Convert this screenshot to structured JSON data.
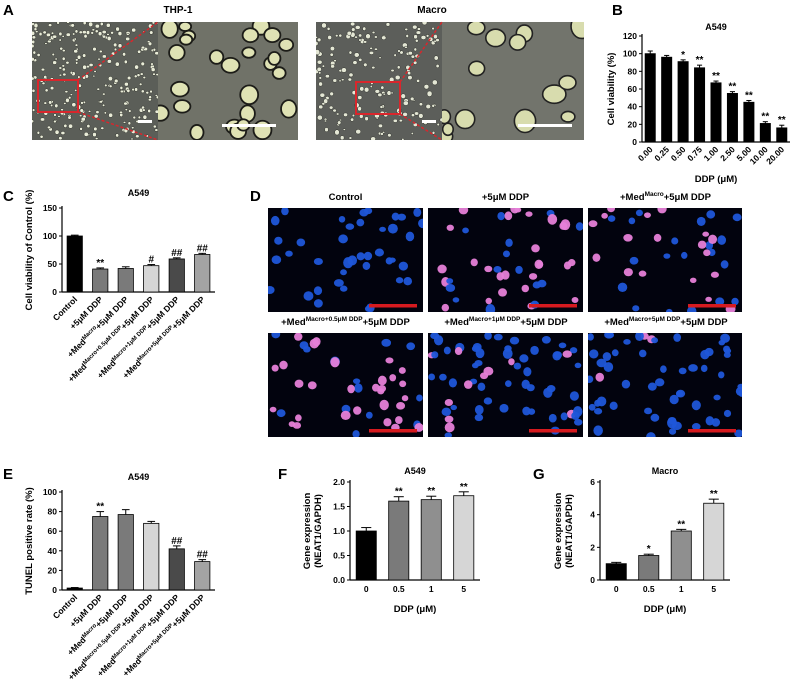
{
  "panels": {
    "A": {
      "letter": "A",
      "titles": [
        "THP-1",
        "Macro"
      ]
    },
    "B": {
      "letter": "B"
    },
    "C": {
      "letter": "C"
    },
    "D": {
      "letter": "D",
      "titles": [
        {
          "main": "Control",
          "sup": "",
          "tail": ""
        },
        {
          "main": "+5μM DDP",
          "sup": "",
          "tail": ""
        },
        {
          "main": "+Med",
          "sup": "Macro",
          "tail": "+5μM DDP"
        },
        {
          "main": "+Med",
          "sup": "Macro+0.5μM DDP",
          "tail": "+5μM DDP"
        },
        {
          "main": "+Med",
          "sup": "Macro+1μM DDP",
          "tail": "+5μM DDP"
        },
        {
          "main": "+Med",
          "sup": "Macro+5μM DDP",
          "tail": "+5μM DDP"
        }
      ]
    },
    "E": {
      "letter": "E"
    },
    "F": {
      "letter": "F"
    },
    "G": {
      "letter": "G"
    }
  },
  "chart_data": [
    {
      "id": "B",
      "type": "bar",
      "title": "A549",
      "ylabel": "Cell viability (%)",
      "xlabel": "DDP (μM)",
      "ylim": [
        0,
        120
      ],
      "yticks": [
        0,
        20,
        40,
        60,
        80,
        100,
        120
      ],
      "categories": [
        "0.00",
        "0.25",
        "0.50",
        "0.75",
        "1.00",
        "2.50",
        "5.00",
        "10.00",
        "20.00"
      ],
      "values": [
        100,
        96,
        91,
        84,
        67,
        55,
        45,
        21,
        16
      ],
      "errors": [
        3,
        2,
        2,
        3,
        2,
        2,
        2,
        2,
        3
      ],
      "annotations": [
        "",
        "",
        "*",
        "**",
        "**",
        "**",
        "**",
        "**",
        "**"
      ],
      "colors": [
        "#000000",
        "#000000",
        "#000000",
        "#000000",
        "#000000",
        "#000000",
        "#000000",
        "#000000",
        "#000000"
      ]
    },
    {
      "id": "C",
      "type": "bar",
      "title": "A549",
      "ylabel": "Cell viability of Control (%)",
      "xlabel": "",
      "ylim": [
        0,
        150
      ],
      "yticks": [
        0,
        50,
        100,
        150
      ],
      "categories": [
        {
          "main": "Control",
          "sup": "",
          "tail": ""
        },
        {
          "main": "+5μM DDP",
          "sup": "",
          "tail": ""
        },
        {
          "main": "+Med",
          "sup": "Macro",
          "tail": "+5μM DDP"
        },
        {
          "main": "+Med",
          "sup": "Macro+0.5μM DDP",
          "tail": "+5μM DDP"
        },
        {
          "main": "+Med",
          "sup": "Macro+1μM DDP",
          "tail": "+5μM DDP"
        },
        {
          "main": "+Med",
          "sup": "Macro+5μM DDP",
          "tail": "+5μM DDP"
        }
      ],
      "values": [
        100,
        41,
        42,
        47,
        59,
        67
      ],
      "errors": [
        1.5,
        2,
        3,
        2,
        2,
        2
      ],
      "annotations": [
        "",
        "**",
        "",
        "#",
        "##",
        "##"
      ],
      "colors": [
        "#000000",
        "#7a7a7a",
        "#7a7a7a",
        "#d6d6d6",
        "#4a4a4a",
        "#a3a3a3"
      ]
    },
    {
      "id": "E",
      "type": "bar",
      "title": "A549",
      "ylabel": "TUNEL positive rate  (%)",
      "xlabel": "",
      "ylim": [
        0,
        100
      ],
      "yticks": [
        0,
        20,
        40,
        60,
        80,
        100
      ],
      "categories": [
        {
          "main": "Control",
          "sup": "",
          "tail": ""
        },
        {
          "main": "+5μM DDP",
          "sup": "",
          "tail": ""
        },
        {
          "main": "+Med",
          "sup": "Macro",
          "tail": "+5μM DDP"
        },
        {
          "main": "+Med",
          "sup": "Macro+0.5μM DDP",
          "tail": "+5μM DDP"
        },
        {
          "main": "+Med",
          "sup": "Macro+1μM DDP",
          "tail": "+5μM DDP"
        },
        {
          "main": "+Med",
          "sup": "Macro+5μM DDP",
          "tail": "+5μM DDP"
        }
      ],
      "values": [
        2,
        75,
        77,
        68,
        42,
        29
      ],
      "errors": [
        0.5,
        5,
        5,
        2,
        3,
        2
      ],
      "annotations": [
        "",
        "**",
        "",
        "",
        "##",
        "##"
      ],
      "colors": [
        "#000000",
        "#7a7a7a",
        "#7a7a7a",
        "#d6d6d6",
        "#4a4a4a",
        "#a3a3a3"
      ]
    },
    {
      "id": "F",
      "type": "bar",
      "title": "A549",
      "ylabel": "Gene expression",
      "ylabel2": "(NEAT1/GAPDH)",
      "xlabel": "DDP (μM)",
      "ylim": [
        0,
        2.0
      ],
      "yticks": [
        0.0,
        0.5,
        1.0,
        1.5,
        2.0
      ],
      "ytickLabels": [
        "0.0",
        "0.5",
        "1.0",
        "1.5",
        "2.0"
      ],
      "categories": [
        "0",
        "0.5",
        "1",
        "5"
      ],
      "values": [
        1.0,
        1.61,
        1.64,
        1.72
      ],
      "errors": [
        0.07,
        0.09,
        0.07,
        0.08
      ],
      "annotations": [
        "",
        "**",
        "**",
        "**"
      ],
      "colors": [
        "#000000",
        "#7a7a7a",
        "#8f8f8f",
        "#d6d6d6"
      ]
    },
    {
      "id": "G",
      "type": "bar",
      "title": "Macro",
      "ylabel": "Gene expression",
      "ylabel2": "(NEAT1/GAPDH)",
      "xlabel": "DDP (μM)",
      "ylim": [
        0,
        6
      ],
      "yticks": [
        0,
        2,
        4,
        6
      ],
      "ytickLabels": [
        "0",
        "2",
        "4",
        "6"
      ],
      "categories": [
        "0",
        "0.5",
        "1",
        "5"
      ],
      "values": [
        1.0,
        1.5,
        3.0,
        4.7
      ],
      "errors": [
        0.08,
        0.08,
        0.1,
        0.25
      ],
      "annotations": [
        "",
        "*",
        "**",
        "**"
      ],
      "colors": [
        "#000000",
        "#7a7a7a",
        "#8f8f8f",
        "#d6d6d6"
      ]
    }
  ],
  "colors": {
    "zoom_box": "#d9262c",
    "scale_bar_white": "#ffffff",
    "scale_bar_red": "#d61a1f",
    "nuclei_blue": "#1f56d9",
    "nuclei_pink": "#e67fd8"
  }
}
